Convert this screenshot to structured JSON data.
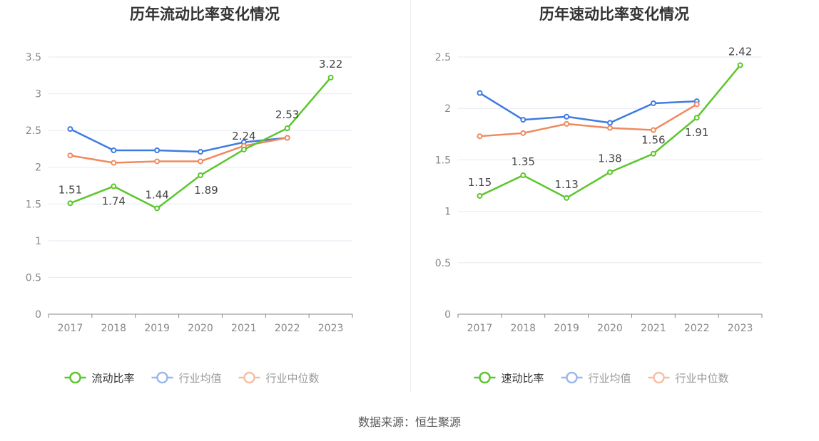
{
  "source": "数据来源：恒生聚源",
  "chart_data": [
    {
      "type": "line",
      "title": "历年流动比率变化情况",
      "categories": [
        "2017",
        "2018",
        "2019",
        "2020",
        "2021",
        "2022",
        "2023"
      ],
      "ylim": [
        0,
        3.5
      ],
      "yticks": [
        "0",
        "0.5",
        "1",
        "1.5",
        "2",
        "2.5",
        "3",
        "3.5"
      ],
      "legend_position": "bottom",
      "grid": true,
      "series": [
        {
          "name": "流动比率",
          "color": "#5cc62c",
          "values": [
            1.51,
            1.74,
            1.44,
            1.89,
            2.24,
            2.53,
            3.22
          ],
          "labels": [
            "1.51",
            "1.74",
            "1.44",
            "1.89",
            "2.24",
            "2.53",
            "3.22"
          ]
        },
        {
          "name": "行业均值",
          "color": "#3f7be0",
          "values": [
            2.52,
            2.23,
            2.23,
            2.21,
            2.34,
            2.4,
            null
          ]
        },
        {
          "name": "行业中位数",
          "color": "#f0895f",
          "values": [
            2.16,
            2.06,
            2.08,
            2.08,
            2.29,
            2.4,
            null
          ]
        }
      ]
    },
    {
      "type": "line",
      "title": "历年速动比率变化情况",
      "categories": [
        "2017",
        "2018",
        "2019",
        "2020",
        "2021",
        "2022",
        "2023"
      ],
      "ylim": [
        0,
        2.5
      ],
      "yticks": [
        "0",
        "0.5",
        "1",
        "1.5",
        "2",
        "2.5"
      ],
      "legend_position": "bottom",
      "grid": true,
      "series": [
        {
          "name": "速动比率",
          "color": "#5cc62c",
          "values": [
            1.15,
            1.35,
            1.13,
            1.38,
            1.56,
            1.91,
            2.42
          ],
          "labels": [
            "1.15",
            "1.35",
            "1.13",
            "1.38",
            "1.56",
            "1.91",
            "2.42"
          ]
        },
        {
          "name": "行业均值",
          "color": "#3f7be0",
          "values": [
            2.15,
            1.89,
            1.92,
            1.86,
            2.05,
            2.07,
            null
          ]
        },
        {
          "name": "行业中位数",
          "color": "#f0895f",
          "values": [
            1.73,
            1.76,
            1.85,
            1.81,
            1.79,
            2.04,
            null
          ]
        }
      ]
    }
  ]
}
